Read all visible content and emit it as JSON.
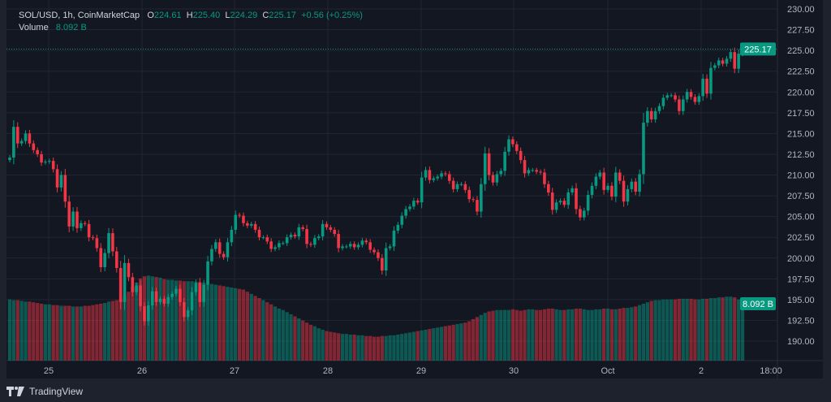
{
  "header": {
    "symbol": "SOL/USD, 1h, CoinMarketCap",
    "open_label": "O",
    "open": "224.61",
    "high_label": "H",
    "high": "225.40",
    "low_label": "L",
    "low": "224.29",
    "close_label": "C",
    "close": "225.17",
    "change": "+0.56 (+0.25%)",
    "volume_label": "Volume",
    "volume": "8.092 B"
  },
  "footer": {
    "brand": "TradingView",
    "logo_icon": "tradingview-logo-icon"
  },
  "colors": {
    "up": "#089981",
    "down": "#f23645",
    "background": "#131722",
    "grid": "#232632",
    "text": "#b2b5be"
  },
  "chart_data": {
    "type": "candlestick",
    "symbol": "SOL/USD",
    "interval": "1h",
    "ylim": [
      188.5,
      231
    ],
    "y_ticks": [
      "230.00",
      "227.50",
      "225.00",
      "222.50",
      "220.00",
      "217.50",
      "215.00",
      "212.50",
      "210.00",
      "207.50",
      "205.00",
      "202.50",
      "200.00",
      "197.50",
      "195.00",
      "192.50",
      "190.00"
    ],
    "x_ticks": [
      "25",
      "26",
      "27",
      "28",
      "29",
      "30",
      "Oct",
      "2",
      "18:00"
    ],
    "grid": true,
    "last_price": "225.17",
    "last_volume": "8.092 B",
    "first_open": 211.8,
    "close": [
      212.1,
      215.8,
      213.8,
      214.1,
      215.0,
      213.8,
      213.0,
      212.5,
      211.5,
      211.6,
      211.7,
      210.7,
      208.5,
      210.0,
      206.8,
      203.8,
      205.6,
      203.6,
      204.2,
      204.1,
      202.5,
      202.4,
      201.2,
      198.9,
      200.6,
      203.0,
      200.8,
      198.8,
      194.7,
      199.4,
      197.7,
      195.9,
      196.7,
      194.2,
      192.4,
      194.3,
      196.0,
      194.7,
      195.1,
      194.5,
      195.3,
      195.7,
      196.3,
      194.7,
      192.9,
      193.7,
      195.9,
      197.0,
      194.7,
      196.8,
      199.6,
      201.1,
      201.9,
      200.5,
      200.1,
      201.9,
      203.4,
      205.2,
      205.1,
      204.2,
      203.9,
      204.1,
      203.4,
      202.5,
      202.5,
      202.0,
      201.1,
      201.3,
      201.8,
      201.8,
      202.5,
      202.8,
      202.6,
      203.7,
      203.5,
      201.7,
      201.6,
      202.4,
      202.6,
      204.1,
      203.7,
      203.4,
      202.9,
      201.2,
      201.4,
      201.4,
      201.7,
      201.3,
      201.6,
      202.1,
      201.9,
      201.0,
      200.7,
      200.0,
      198.5,
      201.2,
      201.4,
      203.3,
      204.0,
      205.1,
      205.9,
      206.2,
      206.9,
      206.7,
      209.7,
      210.6,
      209.4,
      209.6,
      209.8,
      210.2,
      210.1,
      209.3,
      208.3,
      208.9,
      208.9,
      208.2,
      207.1,
      207.0,
      205.6,
      208.9,
      212.6,
      210.0,
      209.1,
      210.1,
      210.5,
      212.8,
      214.3,
      213.7,
      212.9,
      211.8,
      210.2,
      210.6,
      210.6,
      210.4,
      210.3,
      208.9,
      207.9,
      205.8,
      206.7,
      206.9,
      206.4,
      207.9,
      208.4,
      205.9,
      204.9,
      205.7,
      207.6,
      208.7,
      209.8,
      210.3,
      208.2,
      208.7,
      207.4,
      210.3,
      209.3,
      206.8,
      208.3,
      209.2,
      208.0,
      210.1,
      216.3,
      217.7,
      216.7,
      217.7,
      218.3,
      219.3,
      219.6,
      219.6,
      219.1,
      217.7,
      219.1,
      220.0,
      219.4,
      218.8,
      219.5,
      221.6,
      219.8,
      222.9,
      223.2,
      223.8,
      223.4,
      224.0,
      224.8,
      222.8,
      224.61,
      225.17
    ],
    "volume_billions": [
      8.7,
      8.6,
      8.6,
      8.5,
      8.4,
      8.4,
      8.3,
      8.2,
      8.1,
      8.0,
      8.0,
      7.9,
      7.9,
      7.8,
      7.8,
      7.8,
      7.7,
      7.7,
      7.7,
      7.8,
      7.8,
      7.9,
      8.0,
      8.1,
      8.2,
      8.4,
      8.5,
      8.6,
      8.7,
      9.2,
      9.8,
      10.5,
      11.1,
      11.7,
      12.0,
      12.1,
      12.0,
      11.9,
      11.8,
      11.6,
      11.5,
      11.5,
      11.4,
      11.4,
      11.3,
      11.3,
      11.3,
      11.2,
      11.2,
      11.1,
      11.0,
      10.9,
      10.8,
      10.7,
      10.6,
      10.5,
      10.4,
      10.3,
      10.2,
      10.1,
      9.8,
      9.5,
      9.2,
      8.9,
      8.6,
      8.3,
      8.0,
      7.7,
      7.4,
      7.2,
      6.9,
      6.6,
      6.3,
      6.0,
      5.7,
      5.4,
      5.1,
      4.9,
      4.6,
      4.4,
      4.2,
      4.1,
      4.0,
      3.9,
      3.8,
      3.8,
      3.7,
      3.7,
      3.6,
      3.6,
      3.5,
      3.5,
      3.4,
      3.4,
      3.5,
      3.5,
      3.6,
      3.6,
      3.7,
      3.8,
      3.9,
      4.0,
      4.1,
      4.2,
      4.3,
      4.4,
      4.5,
      4.6,
      4.7,
      4.8,
      4.9,
      5.0,
      5.1,
      5.2,
      5.3,
      5.4,
      5.6,
      5.9,
      6.2,
      6.5,
      6.8,
      7.0,
      7.1,
      7.2,
      7.2,
      7.2,
      7.2,
      7.3,
      7.2,
      7.1,
      7.2,
      7.3,
      7.3,
      7.2,
      7.2,
      7.3,
      7.4,
      7.4,
      7.3,
      7.2,
      7.2,
      7.3,
      7.3,
      7.4,
      7.4,
      7.3,
      7.2,
      7.2,
      7.3,
      7.3,
      7.4,
      7.4,
      7.3,
      7.3,
      7.4,
      7.5,
      7.5,
      7.6,
      7.7,
      7.9,
      8.1,
      8.3,
      8.5,
      8.6,
      8.6,
      8.7,
      8.7,
      8.7,
      8.7,
      8.8,
      8.8,
      8.8,
      8.8,
      8.7,
      8.7,
      8.8,
      8.8,
      8.9,
      8.9,
      9.0,
      9.0,
      9.1,
      9.1,
      9.0,
      8.7,
      8.092
    ]
  }
}
